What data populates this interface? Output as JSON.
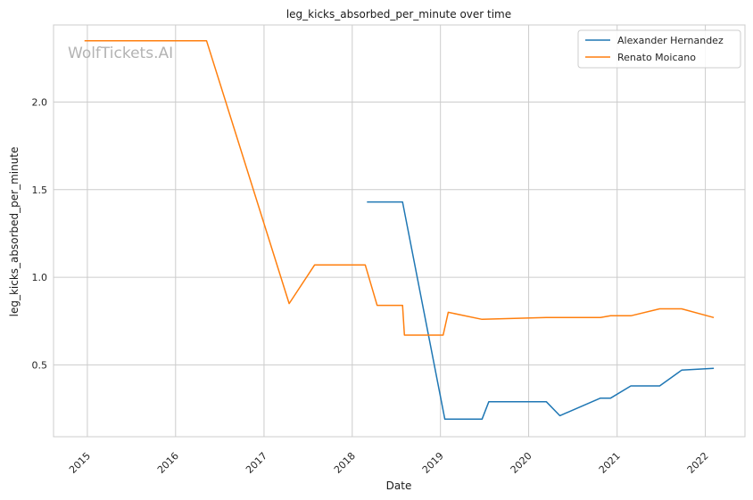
{
  "chart_data": {
    "type": "line",
    "title": "leg_kicks_absorbed_per_minute over time",
    "xlabel": "Date",
    "ylabel": "leg_kicks_absorbed_per_minute",
    "watermark": "WolfTickets.AI",
    "x_ticks": [
      "2015",
      "2016",
      "2017",
      "2018",
      "2019",
      "2020",
      "2021",
      "2022"
    ],
    "y_ticks": [
      "0.5",
      "1.0",
      "1.5",
      "2.0"
    ],
    "xlim": [
      "2014-08-14",
      "2022-06-14"
    ],
    "ylim": [
      0.09,
      2.44
    ],
    "grid": true,
    "legend_position": "top-right",
    "series": [
      {
        "name": "Alexander Hernandez",
        "color": "#1f77b4",
        "points": [
          {
            "x": "2018-03-03",
            "y": 1.43
          },
          {
            "x": "2018-07-28",
            "y": 1.43
          },
          {
            "x": "2019-01-19",
            "y": 0.19
          },
          {
            "x": "2019-06-22",
            "y": 0.19
          },
          {
            "x": "2019-07-20",
            "y": 0.29
          },
          {
            "x": "2020-03-14",
            "y": 0.29
          },
          {
            "x": "2020-05-09",
            "y": 0.21
          },
          {
            "x": "2020-10-24",
            "y": 0.31
          },
          {
            "x": "2020-12-05",
            "y": 0.31
          },
          {
            "x": "2021-02-27",
            "y": 0.38
          },
          {
            "x": "2021-06-26",
            "y": 0.38
          },
          {
            "x": "2021-09-25",
            "y": 0.47
          },
          {
            "x": "2022-02-05",
            "y": 0.48
          }
        ]
      },
      {
        "name": "Renato Moicano",
        "color": "#ff7f0e",
        "points": [
          {
            "x": "2014-12-20",
            "y": 2.35
          },
          {
            "x": "2016-05-08",
            "y": 2.35
          },
          {
            "x": "2017-04-15",
            "y": 0.85
          },
          {
            "x": "2017-07-29",
            "y": 1.07
          },
          {
            "x": "2018-02-24",
            "y": 1.07
          },
          {
            "x": "2018-04-14",
            "y": 0.84
          },
          {
            "x": "2018-07-28",
            "y": 0.84
          },
          {
            "x": "2018-08-05",
            "y": 0.67
          },
          {
            "x": "2019-01-12",
            "y": 0.67
          },
          {
            "x": "2019-02-02",
            "y": 0.8
          },
          {
            "x": "2019-06-22",
            "y": 0.76
          },
          {
            "x": "2020-03-14",
            "y": 0.77
          },
          {
            "x": "2020-10-24",
            "y": 0.77
          },
          {
            "x": "2020-12-05",
            "y": 0.78
          },
          {
            "x": "2021-02-27",
            "y": 0.78
          },
          {
            "x": "2021-06-26",
            "y": 0.82
          },
          {
            "x": "2021-09-25",
            "y": 0.82
          },
          {
            "x": "2022-02-05",
            "y": 0.77
          }
        ]
      }
    ]
  }
}
